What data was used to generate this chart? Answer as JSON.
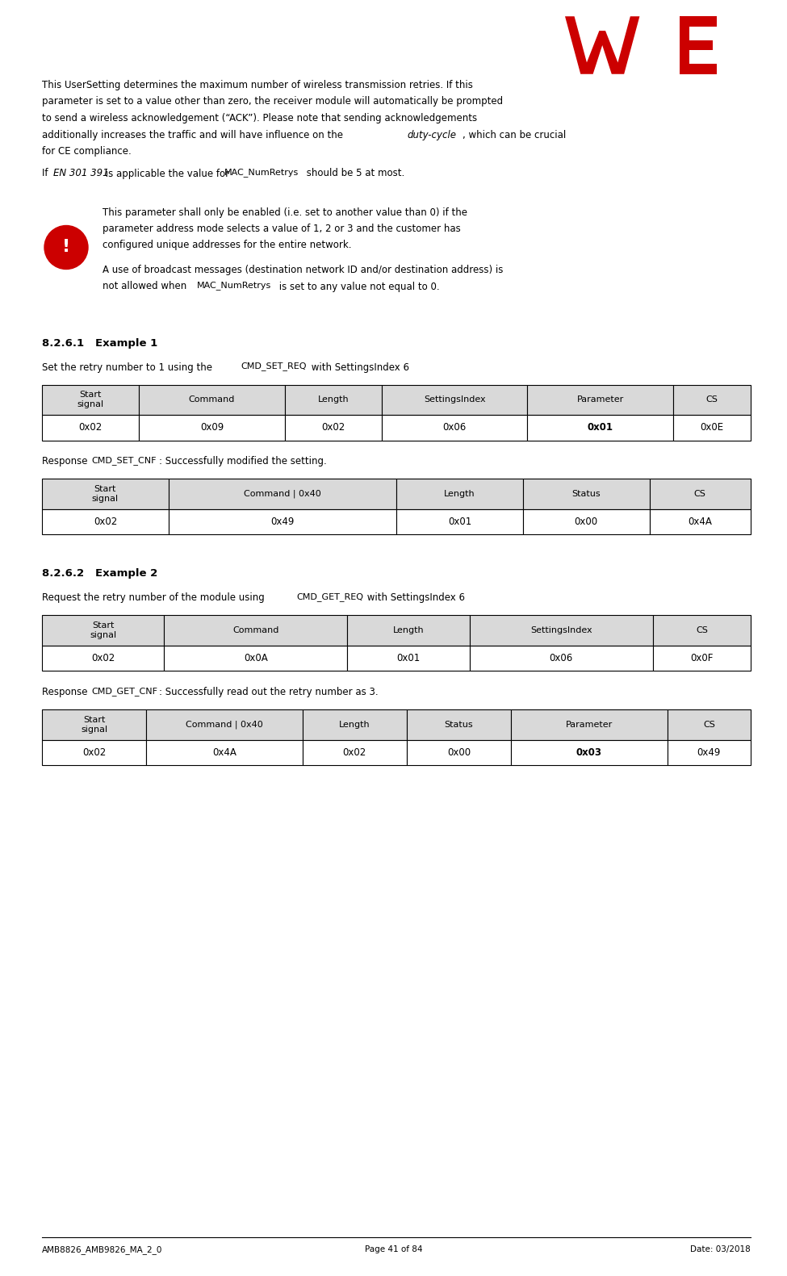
{
  "bg_color": "#ffffff",
  "text_color": "#000000",
  "logo_color": "#cc0000",
  "footer_left": "AMB8826_AMB9826_MA_2_0",
  "footer_center": "Page 41 of 84",
  "footer_right": "Date: 03/2018",
  "para1_lines": [
    "This UserSetting determines the maximum number of wireless transmission retries. If this",
    "parameter is set to a value other than zero, the receiver module will automatically be prompted",
    "to send a wireless acknowledgement (“ACK”). Please note that sending acknowledgements",
    "additionally increases the traffic and will have influence on the |duty-cycle|, which can be crucial",
    "for CE compliance."
  ],
  "para2_prefix": "If ",
  "para2_italic": "EN 301 391",
  "para2_middle": " is applicable the value for ",
  "para2_mono": "MAC_NumRetrys",
  "para2_suffix": " should be 5 at most.",
  "warn_line1": "This parameter shall only be enabled (i.e. set to another value than 0) if the",
  "warn_line2": "parameter address mode selects a value of 1, 2 or 3 and the customer has",
  "warn_line3": "configured unique addresses for the entire network.",
  "warn_line4": "A use of broadcast messages (destination network ID and/or destination address) is",
  "warn_line5_prefix": "not allowed when ",
  "warn_line5_mono": "MAC_NumRetrys",
  "warn_line5_suffix": " is set to any value not equal to 0.",
  "section1_title": "8.2.6.1   Example 1",
  "section1_desc_prefix": "Set the retry number to 1 using the ",
  "section1_desc_mono": "CMD_SET_REQ",
  "section1_desc_suffix": " with SettingsIndex 6",
  "table1_headers": [
    "Start\nsignal",
    "Command",
    "Length",
    "SettingsIndex",
    "Parameter",
    "CS"
  ],
  "table1_row": [
    "0x02",
    "0x09",
    "0x02",
    "0x06",
    "0x01",
    "0x0E"
  ],
  "table1_bold_col": 4,
  "table1_col_weights": [
    1.0,
    1.5,
    1.0,
    1.5,
    1.5,
    0.8
  ],
  "response1_prefix": "Response ",
  "response1_mono": "CMD_SET_CNF",
  "response1_suffix": ": Successfully modified the setting.",
  "table2_headers": [
    "Start\nsignal",
    "Command | 0x40",
    "Length",
    "Status",
    "CS"
  ],
  "table2_row": [
    "0x02",
    "0x49",
    "0x01",
    "0x00",
    "0x4A"
  ],
  "table2_bold_col": -1,
  "table2_col_weights": [
    1.0,
    1.8,
    1.0,
    1.0,
    0.8
  ],
  "section2_title": "8.2.6.2   Example 2",
  "section2_desc_prefix": "Request the retry number of the module using  ",
  "section2_desc_mono": "CMD_GET_REQ",
  "section2_desc_suffix": " with SettingsIndex 6",
  "table3_headers": [
    "Start\nsignal",
    "Command",
    "Length",
    "SettingsIndex",
    "CS"
  ],
  "table3_row": [
    "0x02",
    "0x0A",
    "0x01",
    "0x06",
    "0x0F"
  ],
  "table3_bold_col": -1,
  "table3_col_weights": [
    1.0,
    1.5,
    1.0,
    1.5,
    0.8
  ],
  "response2_prefix": "Response ",
  "response2_mono": "CMD_GET_CNF",
  "response2_suffix": ": Successfully read out the retry number as 3.",
  "table4_headers": [
    "Start\nsignal",
    "Command | 0x40",
    "Length",
    "Status",
    "Parameter",
    "CS"
  ],
  "table4_row": [
    "0x02",
    "0x4A",
    "0x02",
    "0x00",
    "0x03",
    "0x49"
  ],
  "table4_bold_col": 4,
  "table4_col_weights": [
    1.0,
    1.5,
    1.0,
    1.0,
    1.5,
    0.8
  ],
  "header_bg": "#d9d9d9",
  "table_border": "#000000",
  "row_bg": "#ffffff"
}
